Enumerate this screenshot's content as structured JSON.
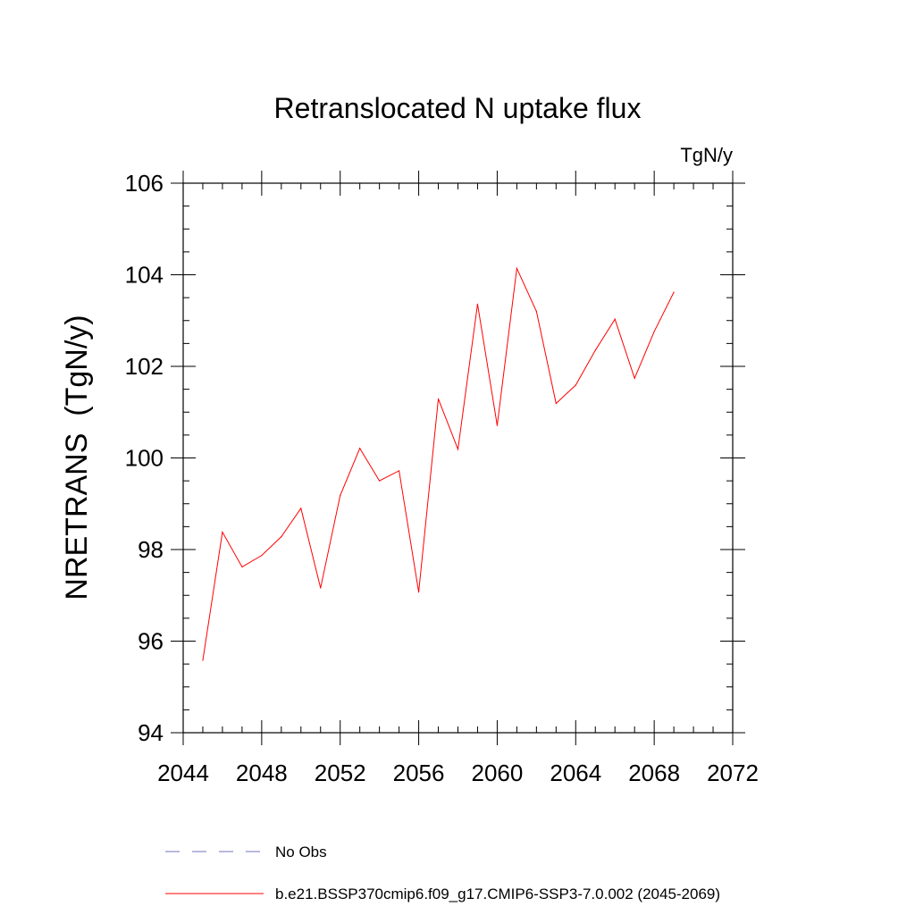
{
  "chart_data": {
    "type": "line",
    "title": "Retranslocated N uptake flux",
    "units_label": "TgN/y",
    "ylabel": "NRETRANS  (TgN/y)",
    "xlabel": "",
    "xlim": [
      2044,
      2072
    ],
    "ylim": [
      94,
      106
    ],
    "x_ticks": [
      2044,
      2048,
      2052,
      2056,
      2060,
      2064,
      2068,
      2072
    ],
    "y_ticks": [
      94,
      96,
      98,
      100,
      102,
      104,
      106
    ],
    "x_minor_step": 1,
    "y_minor_step": 0.5,
    "grid": false,
    "series": [
      {
        "name": "b.e21.BSSP370cmip6.f09_g17.CMIP6-SSP3-7.0.002 (2045-2069)",
        "color": "#ff0000",
        "line_style": "solid",
        "x": [
          2045,
          2046,
          2047,
          2048,
          2049,
          2050,
          2051,
          2052,
          2053,
          2054,
          2055,
          2056,
          2057,
          2058,
          2059,
          2060,
          2061,
          2062,
          2063,
          2064,
          2065,
          2066,
          2067,
          2068,
          2069
        ],
        "values": [
          95.58,
          98.38,
          97.62,
          97.87,
          98.28,
          98.9,
          97.16,
          99.18,
          100.21,
          99.5,
          99.72,
          97.07,
          101.29,
          100.19,
          103.36,
          100.71,
          104.14,
          103.2,
          101.19,
          101.59,
          102.35,
          103.03,
          101.74,
          102.76,
          103.62
        ]
      }
    ],
    "legend": [
      {
        "label": "No Obs",
        "color": "#7070c0",
        "line_style": "dashed"
      },
      {
        "label": "b.e21.BSSP370cmip6.f09_g17.CMIP6-SSP3-7.0.002 (2045-2069)",
        "color": "#ff0000",
        "line_style": "solid"
      }
    ],
    "legend_position": "bottom"
  }
}
